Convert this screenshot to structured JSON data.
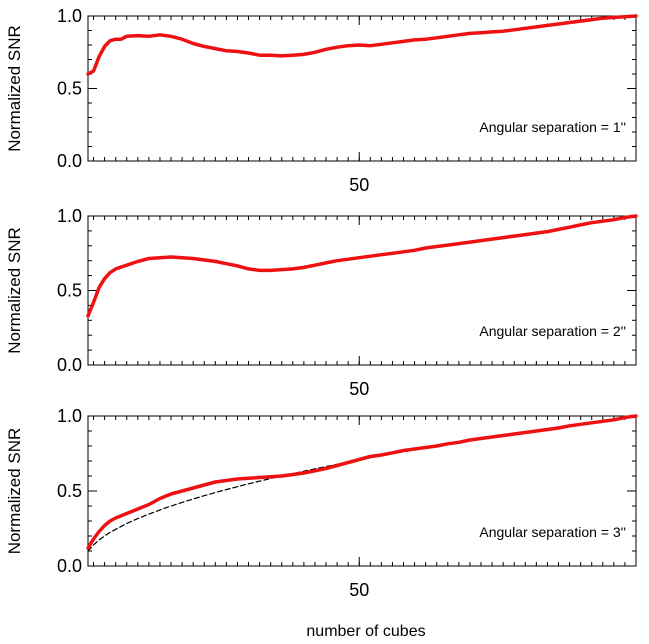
{
  "chart_data": [
    {
      "type": "line",
      "title": "",
      "xlabel": "",
      "ylabel": "Normalized SNR",
      "xlim": [
        1,
        100
      ],
      "ylim": [
        0,
        1
      ],
      "xticks": [
        50
      ],
      "yticks": [
        0.0,
        0.5,
        1.0
      ],
      "ytick_labels": [
        "0.0",
        "0.5",
        "1.0"
      ],
      "xtick_labels": [
        "50"
      ],
      "annotation": "Angular separation = 1''",
      "series": [
        {
          "color": "#ee1111",
          "style": "solid",
          "x": [
            1,
            2,
            3,
            4,
            5,
            6,
            7,
            8,
            10,
            12,
            14,
            16,
            18,
            20,
            22,
            24,
            26,
            28,
            30,
            32,
            34,
            36,
            38,
            40,
            42,
            44,
            46,
            48,
            50,
            52,
            54,
            56,
            58,
            60,
            62,
            64,
            66,
            68,
            70,
            72,
            74,
            76,
            78,
            80,
            82,
            84,
            86,
            88,
            90,
            92,
            94,
            96,
            98,
            100
          ],
          "y": [
            0.6,
            0.62,
            0.72,
            0.79,
            0.83,
            0.84,
            0.84,
            0.86,
            0.865,
            0.86,
            0.87,
            0.86,
            0.84,
            0.81,
            0.79,
            0.775,
            0.76,
            0.755,
            0.745,
            0.73,
            0.73,
            0.725,
            0.73,
            0.735,
            0.75,
            0.77,
            0.785,
            0.795,
            0.8,
            0.795,
            0.805,
            0.815,
            0.825,
            0.835,
            0.84,
            0.85,
            0.86,
            0.87,
            0.88,
            0.885,
            0.89,
            0.895,
            0.905,
            0.915,
            0.925,
            0.935,
            0.945,
            0.955,
            0.965,
            0.975,
            0.985,
            0.99,
            0.995,
            1.0
          ]
        }
      ]
    },
    {
      "type": "line",
      "title": "",
      "xlabel": "",
      "ylabel": "Normalized SNR",
      "xlim": [
        1,
        100
      ],
      "ylim": [
        0,
        1
      ],
      "xticks": [
        50
      ],
      "yticks": [
        0.0,
        0.5,
        1.0
      ],
      "ytick_labels": [
        "0.0",
        "0.5",
        "1.0"
      ],
      "xtick_labels": [
        "50"
      ],
      "annotation": "Angular separation = 2''",
      "series": [
        {
          "color": "#ee1111",
          "style": "solid",
          "x": [
            1,
            2,
            3,
            4,
            5,
            6,
            8,
            10,
            12,
            14,
            16,
            18,
            20,
            22,
            24,
            26,
            28,
            30,
            32,
            34,
            36,
            38,
            40,
            42,
            44,
            46,
            48,
            50,
            52,
            54,
            56,
            58,
            60,
            62,
            64,
            66,
            68,
            70,
            72,
            74,
            76,
            78,
            80,
            82,
            84,
            86,
            88,
            90,
            92,
            94,
            96,
            98,
            100
          ],
          "y": [
            0.33,
            0.42,
            0.52,
            0.58,
            0.62,
            0.645,
            0.67,
            0.695,
            0.715,
            0.72,
            0.725,
            0.72,
            0.715,
            0.705,
            0.695,
            0.68,
            0.665,
            0.645,
            0.635,
            0.635,
            0.64,
            0.645,
            0.655,
            0.67,
            0.685,
            0.7,
            0.71,
            0.72,
            0.73,
            0.74,
            0.75,
            0.76,
            0.77,
            0.785,
            0.795,
            0.805,
            0.815,
            0.825,
            0.835,
            0.845,
            0.855,
            0.865,
            0.875,
            0.885,
            0.895,
            0.91,
            0.925,
            0.94,
            0.955,
            0.965,
            0.975,
            0.99,
            1.0
          ]
        }
      ]
    },
    {
      "type": "line",
      "title": "",
      "xlabel": "number of cubes",
      "ylabel": "Normalized SNR",
      "xlim": [
        1,
        100
      ],
      "ylim": [
        0,
        1
      ],
      "xticks": [
        50
      ],
      "yticks": [
        0.0,
        0.5,
        1.0
      ],
      "ytick_labels": [
        "0.0",
        "0.5",
        "1.0"
      ],
      "xtick_labels": [
        "50"
      ],
      "annotation": "Angular separation = 3''",
      "series": [
        {
          "color": "#ee1111",
          "style": "solid",
          "x": [
            1,
            2,
            3,
            4,
            5,
            6,
            8,
            10,
            12,
            14,
            16,
            18,
            20,
            22,
            24,
            26,
            28,
            30,
            32,
            34,
            36,
            38,
            40,
            42,
            44,
            46,
            48,
            50,
            52,
            54,
            56,
            58,
            60,
            62,
            64,
            66,
            68,
            70,
            72,
            74,
            76,
            78,
            80,
            82,
            84,
            86,
            88,
            90,
            92,
            94,
            96,
            98,
            100
          ],
          "y": [
            0.12,
            0.18,
            0.23,
            0.27,
            0.3,
            0.32,
            0.35,
            0.38,
            0.41,
            0.45,
            0.48,
            0.5,
            0.52,
            0.54,
            0.56,
            0.57,
            0.58,
            0.585,
            0.59,
            0.595,
            0.6,
            0.61,
            0.62,
            0.635,
            0.65,
            0.67,
            0.69,
            0.71,
            0.73,
            0.74,
            0.755,
            0.77,
            0.78,
            0.79,
            0.8,
            0.815,
            0.825,
            0.84,
            0.85,
            0.86,
            0.87,
            0.88,
            0.89,
            0.9,
            0.91,
            0.92,
            0.935,
            0.945,
            0.955,
            0.965,
            0.975,
            0.99,
            1.0
          ]
        },
        {
          "color": "#000000",
          "style": "dashed",
          "x": [
            1,
            2,
            3,
            4,
            5,
            6,
            8,
            10,
            12,
            15,
            18,
            21,
            25,
            30,
            35,
            40,
            45,
            50,
            55,
            60,
            65,
            70,
            75,
            80,
            85,
            90,
            95,
            100
          ],
          "y": [
            0.1,
            0.141,
            0.173,
            0.2,
            0.224,
            0.245,
            0.283,
            0.316,
            0.346,
            0.387,
            0.424,
            0.458,
            0.5,
            0.548,
            0.592,
            0.632,
            0.671,
            0.707,
            0.742,
            0.775,
            0.806,
            0.837,
            0.866,
            0.894,
            0.922,
            0.949,
            0.975,
            1.0
          ]
        }
      ]
    }
  ]
}
